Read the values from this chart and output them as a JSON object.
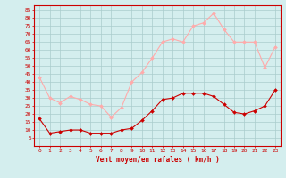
{
  "hours": [
    0,
    1,
    2,
    3,
    4,
    5,
    6,
    7,
    8,
    9,
    10,
    11,
    12,
    13,
    14,
    15,
    16,
    17,
    18,
    19,
    20,
    21,
    22,
    23
  ],
  "wind_avg": [
    17,
    8,
    9,
    10,
    10,
    8,
    8,
    8,
    10,
    11,
    16,
    22,
    29,
    30,
    33,
    33,
    33,
    31,
    26,
    21,
    20,
    22,
    25,
    35
  ],
  "wind_gust": [
    43,
    30,
    27,
    31,
    29,
    26,
    25,
    18,
    24,
    40,
    46,
    55,
    65,
    67,
    65,
    75,
    77,
    83,
    73,
    65,
    65,
    65,
    49,
    62
  ],
  "avg_color": "#cc0000",
  "gust_color": "#ffaaaa",
  "bg_color": "#d4eeee",
  "grid_color": "#aacccc",
  "xlabel": "Vent moyen/en rafales ( km/h )",
  "ylim": [
    0,
    88
  ],
  "yticks": [
    5,
    10,
    15,
    20,
    25,
    30,
    35,
    40,
    45,
    50,
    55,
    60,
    65,
    70,
    75,
    80,
    85
  ],
  "xlim_min": -0.5,
  "xlim_max": 23.5,
  "xlabel_color": "#cc0000",
  "axis_color": "#cc0000",
  "tick_color": "#cc0000",
  "tick_fontsize": 4.5,
  "xlabel_fontsize": 5.5
}
